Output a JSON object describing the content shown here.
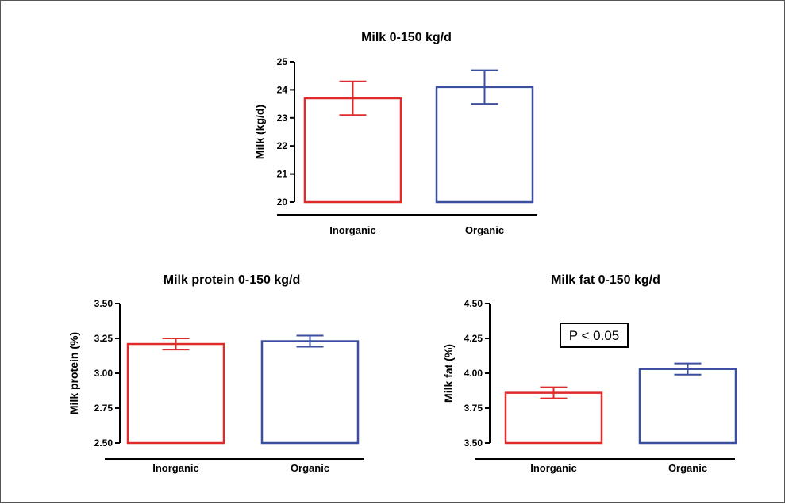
{
  "chart_data": [
    {
      "type": "bar",
      "title": "Milk 0-150 kg/d",
      "ylabel": "Milk (kg/d)",
      "xlabel": "",
      "categories": [
        "Inorganic",
        "Organic"
      ],
      "values": [
        23.7,
        24.1
      ],
      "error": [
        0.6,
        0.6
      ],
      "ylim": [
        20,
        25
      ],
      "yticks": [
        20,
        21,
        22,
        23,
        24,
        25
      ],
      "ytick_labels": [
        "20",
        "21",
        "22",
        "23",
        "24",
        "25"
      ],
      "colors": [
        "#e02b2b",
        "#3b4fa0"
      ],
      "grid": false,
      "annotation": ""
    },
    {
      "type": "bar",
      "title": "Milk protein 0-150 kg/d",
      "ylabel": "Milk protein (%)",
      "xlabel": "",
      "categories": [
        "Inorganic",
        "Organic"
      ],
      "values": [
        3.21,
        3.23
      ],
      "error": [
        0.04,
        0.04
      ],
      "ylim": [
        2.5,
        3.5
      ],
      "yticks": [
        2.5,
        2.75,
        3.0,
        3.25,
        3.5
      ],
      "ytick_labels": [
        "2.50",
        "2.75",
        "3.00",
        "3.25",
        "3.50"
      ],
      "colors": [
        "#e02b2b",
        "#3b4fa0"
      ],
      "grid": false,
      "annotation": ""
    },
    {
      "type": "bar",
      "title": "Milk fat 0-150 kg/d",
      "ylabel": "Milk fat (%)",
      "xlabel": "",
      "categories": [
        "Inorganic",
        "Organic"
      ],
      "values": [
        3.86,
        4.03
      ],
      "error": [
        0.04,
        0.04
      ],
      "ylim": [
        3.5,
        4.5
      ],
      "yticks": [
        3.5,
        3.75,
        4.0,
        4.25,
        4.5
      ],
      "ytick_labels": [
        "3.50",
        "3.75",
        "4.00",
        "4.25",
        "4.50"
      ],
      "colors": [
        "#e02b2b",
        "#3b4fa0"
      ],
      "grid": false,
      "annotation": "P < 0.05"
    }
  ]
}
